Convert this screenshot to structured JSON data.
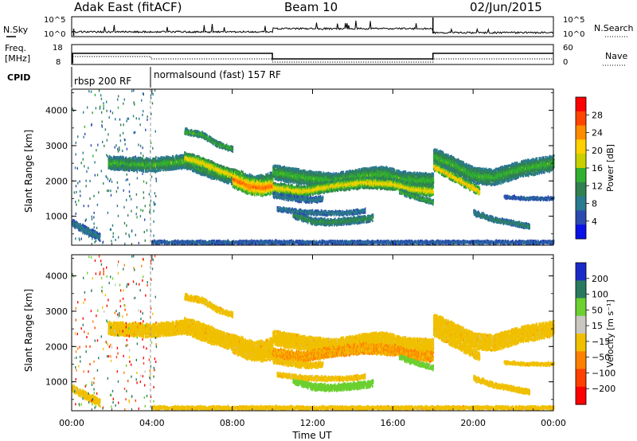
{
  "header": {
    "station": "Adak East (fitACF)",
    "beam": "Beam 10",
    "date": "02/Jun/2015"
  },
  "panels": {
    "noise": {
      "left_label": "N.Sky",
      "right_label": "N.Search",
      "left_ticks": [
        "10^5",
        "10^0"
      ],
      "right_ticks": [
        "10^5",
        "10^0"
      ]
    },
    "freq": {
      "left_label_1": "Freq.",
      "left_label_2": "[MHz]",
      "right_label": "Nave",
      "left_ticks": [
        "18",
        "8"
      ],
      "right_ticks": [
        "60",
        "0"
      ]
    },
    "cpid": {
      "label": "CPID",
      "segments": [
        "rbsp 200 RF",
        "normalsound (fast) 157 RF"
      ]
    }
  },
  "colorbars": {
    "power": {
      "label": "Power [dB]",
      "ticks": [
        "28",
        "24",
        "20",
        "16",
        "12",
        "8",
        "4"
      ],
      "colors": [
        "#ff0000",
        "#ff4400",
        "#ff8c00",
        "#ffd000",
        "#c8d000",
        "#30b030",
        "#308050",
        "#2a7a90",
        "#2c4ab0",
        "#0a10e8"
      ]
    },
    "velocity": {
      "label": "Velocity [m s⁻¹]",
      "ticks": [
        "200",
        "100",
        "50",
        "15",
        "−15",
        "−50",
        "−100",
        "−200"
      ],
      "colors": [
        "#1a2ac8",
        "#2a7a60",
        "#6cd030",
        "#c8c8c0",
        "#f0c000",
        "#ff8000",
        "#ff4000",
        "#ff0000"
      ]
    }
  },
  "chart_data": {
    "type": "heatmap",
    "title": "Adak East (fitACF)  Beam 10  02/Jun/2015",
    "xlabel": "Time UT",
    "ylabel": "Slant Range [km]",
    "x_ticks": [
      "00:00",
      "04:00",
      "08:00",
      "12:00",
      "16:00",
      "20:00",
      "00:00"
    ],
    "xlim_hours": [
      0,
      24
    ],
    "y_ticks": [
      "4000",
      "3000",
      "2000",
      "1000"
    ],
    "ylim_km": [
      180,
      4600
    ],
    "cpid_change_hour": 3.95,
    "freq_step_hours": [
      3.95,
      10.0,
      18.0
    ],
    "bands": [
      {
        "x": [
          1.8,
          4.0,
          5.6,
          7.0,
          8.2,
          9.2,
          10.0
        ],
        "y": [
          2500,
          2450,
          2550,
          2250,
          2050,
          1950,
          2050
        ],
        "width": 380,
        "power": 14,
        "velocity": 0
      },
      {
        "x": [
          5.6,
          6.5,
          7.5,
          8.5
        ],
        "y": [
          2650,
          2500,
          2250,
          2100
        ],
        "width": 320,
        "power": 20,
        "velocity": 0
      },
      {
        "x": [
          8.0,
          8.8,
          9.5,
          10.0
        ],
        "y": [
          2050,
          1850,
          1800,
          1850
        ],
        "width": 450,
        "power": 26,
        "velocity": 0
      },
      {
        "x": [
          5.6,
          6.5,
          7.2,
          8.0
        ],
        "y": [
          3400,
          3300,
          3050,
          2900
        ],
        "width": 160,
        "power": 14,
        "velocity": 0
      },
      {
        "x": [
          10.0,
          11.5,
          13.0,
          14.5,
          15.6,
          16.4,
          18.0
        ],
        "y": [
          2250,
          2100,
          2000,
          2150,
          2200,
          2050,
          2000
        ],
        "width": 420,
        "power": 14,
        "velocity": 0
      },
      {
        "x": [
          10.0,
          11.5,
          13.0,
          14.5,
          16.0,
          17.0,
          18.0
        ],
        "y": [
          1800,
          1700,
          1850,
          1950,
          1900,
          1750,
          1700
        ],
        "width": 300,
        "power": 20,
        "velocity": -10
      },
      {
        "x": [
          10.0,
          11.0,
          12.0,
          12.5
        ],
        "y": [
          1600,
          1500,
          1450,
          1500
        ],
        "width": 150,
        "power": 8,
        "velocity": 0
      },
      {
        "x": [
          11.0,
          12.0,
          13.0,
          14.0,
          15.0
        ],
        "y": [
          1050,
          850,
          830,
          880,
          950
        ],
        "width": 190,
        "power": 12,
        "velocity": 45
      },
      {
        "x": [
          10.2,
          11.8,
          13.5,
          14.6
        ],
        "y": [
          1200,
          1100,
          1080,
          1150
        ],
        "width": 120,
        "power": 8,
        "velocity": 0
      },
      {
        "x": [
          18.0,
          19.0,
          20.0,
          21.0,
          22.5,
          24.0
        ],
        "y": [
          2700,
          2450,
          2150,
          2100,
          2350,
          2500
        ],
        "width": 450,
        "power": 14,
        "velocity": 0
      },
      {
        "x": [
          18.0,
          18.7,
          19.5,
          20.3
        ],
        "y": [
          2400,
          2200,
          1950,
          1700
        ],
        "width": 230,
        "power": 22,
        "velocity": 0
      },
      {
        "x": [
          16.3,
          17.3,
          18.0
        ],
        "y": [
          1700,
          1500,
          1400
        ],
        "width": 130,
        "power": 14,
        "velocity": 40
      },
      {
        "x": [
          20.0,
          21.0,
          22.0,
          22.8
        ],
        "y": [
          1100,
          900,
          800,
          700
        ],
        "width": 140,
        "power": 10,
        "velocity": 0
      },
      {
        "x": [
          0.0,
          0.7,
          1.4
        ],
        "y": [
          800,
          600,
          400
        ],
        "width": 200,
        "power": 8,
        "velocity": 0
      },
      {
        "x": [
          21.5,
          22.5,
          24.0
        ],
        "y": [
          1550,
          1500,
          1500
        ],
        "width": 80,
        "power": 6,
        "velocity": 0
      },
      {
        "x": [
          4.0,
          8.0,
          12.0,
          16.0,
          20.0,
          24.0
        ],
        "y": [
          260,
          260,
          260,
          260,
          260,
          260
        ],
        "width": 90,
        "power": 6,
        "velocity": 0
      }
    ]
  }
}
